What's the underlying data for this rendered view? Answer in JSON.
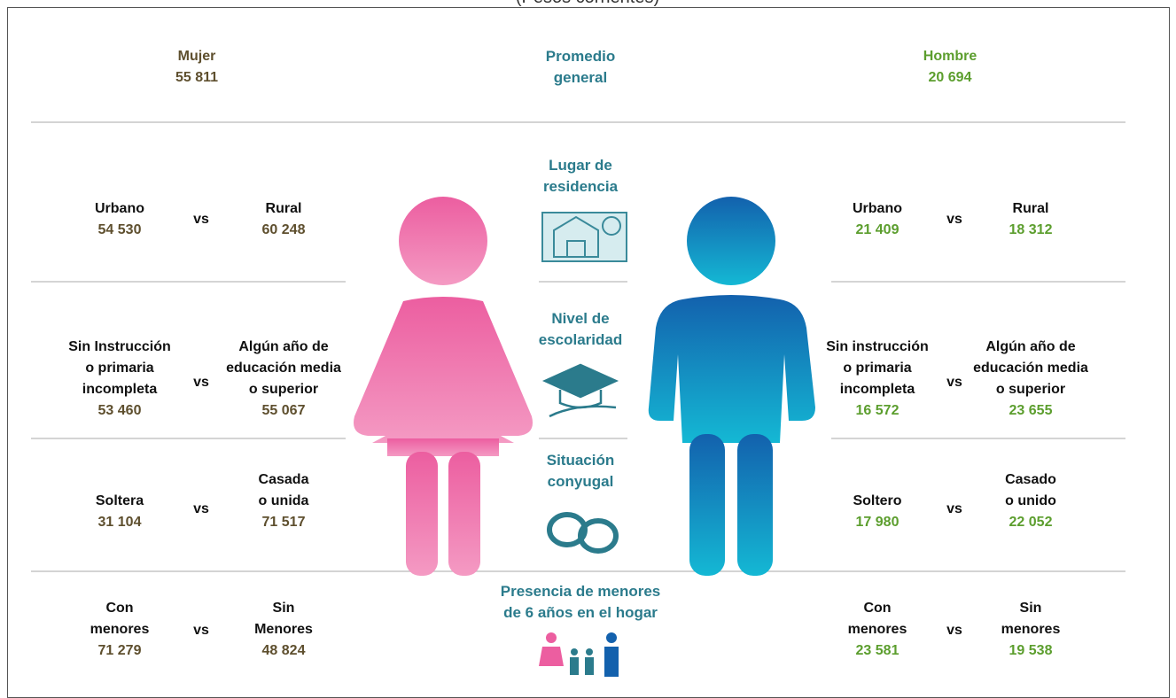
{
  "header": {
    "subtitle": "(Pesos corrientes)"
  },
  "summary": {
    "mujer": {
      "label": "Mujer",
      "value": "55 811"
    },
    "center": "Promedio\ngeneral",
    "hombre": {
      "label": "Hombre",
      "value": "20 694"
    }
  },
  "rows": [
    {
      "topic": "Lugar de\nresidencia",
      "mujer": {
        "left": {
          "label": "Urbano",
          "value": "54 530"
        },
        "vs": "vs",
        "right": {
          "label": "Rural",
          "value": "60 248"
        }
      },
      "hombre": {
        "left": {
          "label": "Urbano",
          "value": "21 409"
        },
        "vs": "vs",
        "right": {
          "label": "Rural",
          "value": "18 312"
        }
      }
    },
    {
      "topic": "Nivel de\nescolaridad",
      "mujer": {
        "left": {
          "label": "Sin Instrucción\no primaria\nincompleta",
          "value": "53 460"
        },
        "vs": "vs",
        "right": {
          "label": "Algún año de\neducación media\no superior",
          "value": "55 067"
        }
      },
      "hombre": {
        "left": {
          "label": "Sin instrucción\no primaria\nincompleta",
          "value": "16 572"
        },
        "vs": "vs",
        "right": {
          "label": "Algún año de\neducación media\no superior",
          "value": "23 655"
        }
      }
    },
    {
      "topic": "Situación\nconyugal",
      "mujer": {
        "left": {
          "label": "Soltera",
          "value": "31 104"
        },
        "vs": "vs",
        "right": {
          "label": "Casada\no unida",
          "value": "71 517"
        }
      },
      "hombre": {
        "left": {
          "label": "Soltero",
          "value": "17 980"
        },
        "vs": "vs",
        "right": {
          "label": "Casado\no unido",
          "value": "22 052"
        }
      }
    },
    {
      "topic": "Presencia de menores\nde 6 años en el hogar",
      "mujer": {
        "left": {
          "label": "Con\nmenores",
          "value": "71 279"
        },
        "vs": "vs",
        "right": {
          "label": "Sin\nMenores",
          "value": "48 824"
        }
      },
      "hombre": {
        "left": {
          "label": "Con\nmenores",
          "value": "23 581"
        },
        "vs": "vs",
        "right": {
          "label": "Sin\nmenores",
          "value": "19 538"
        }
      }
    }
  ]
}
